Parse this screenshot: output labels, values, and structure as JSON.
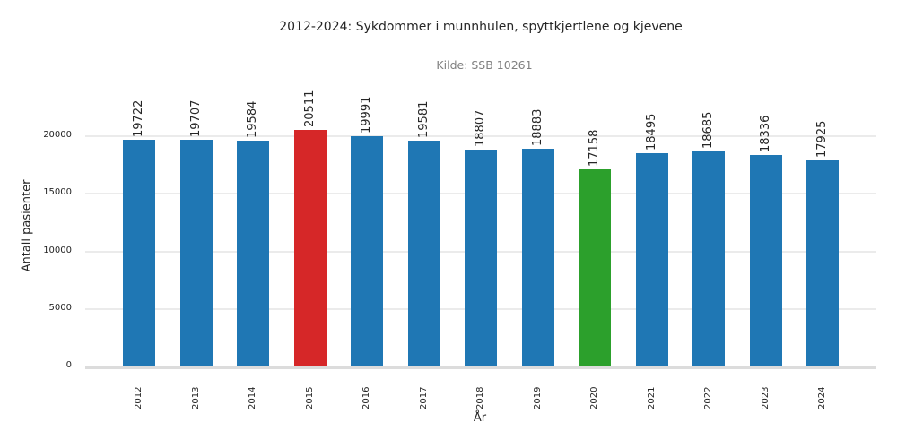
{
  "chart": {
    "title": "2012-2024: Sykdommer i munnhulen, spyttkjertlene og kjevene",
    "subtitle": "Kilde: SSB 10261",
    "xlabel": "År",
    "ylabel": "Antall pasienter",
    "yticks": [
      "0",
      "5000",
      "10000",
      "15000",
      "20000"
    ],
    "colors": {
      "default": "#1f77b4",
      "max": "#d62728",
      "min": "#2ca02c"
    }
  },
  "chart_data": {
    "type": "bar",
    "title": "2012-2024: Sykdommer i munnhulen, spyttkjertlene og kjevene",
    "subtitle": "Kilde: SSB 10261",
    "xlabel": "År",
    "ylabel": "Antall pasienter",
    "categories": [
      "2012",
      "2013",
      "2014",
      "2015",
      "2016",
      "2017",
      "2018",
      "2019",
      "2020",
      "2021",
      "2022",
      "2023",
      "2024"
    ],
    "values": [
      19722,
      19707,
      19584,
      20511,
      19991,
      19581,
      18807,
      18883,
      17158,
      18495,
      18685,
      18336,
      17925
    ],
    "bar_colors": [
      "#1f77b4",
      "#1f77b4",
      "#1f77b4",
      "#d62728",
      "#1f77b4",
      "#1f77b4",
      "#1f77b4",
      "#1f77b4",
      "#2ca02c",
      "#1f77b4",
      "#1f77b4",
      "#1f77b4",
      "#1f77b4"
    ],
    "ylim": [
      0,
      24000
    ],
    "yticks": [
      0,
      5000,
      10000,
      15000,
      20000
    ],
    "grid": true,
    "legend": null,
    "annotations": "value labels above each bar, rotated 90°; max year highlighted red, min year highlighted green"
  }
}
